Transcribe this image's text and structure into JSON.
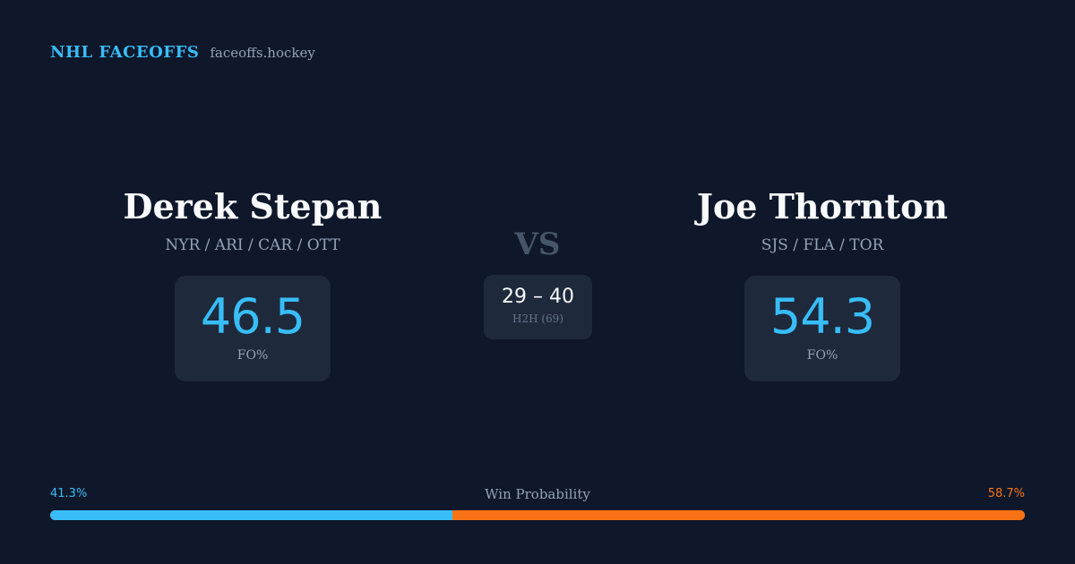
{
  "brand": {
    "name": "NHL FACEOFFS",
    "domain": "faceoffs.hockey"
  },
  "players": [
    {
      "name": "Derek Stepan",
      "teams": "NYR / ARI / CAR / OTT",
      "stat_value": "46.5",
      "stat_label": "FO%"
    },
    {
      "name": "Joe Thornton",
      "teams": "SJS / FLA / TOR",
      "stat_value": "54.3",
      "stat_label": "FO%"
    }
  ],
  "vs_label": "VS",
  "head_to_head": {
    "score": "29 – 40",
    "label": "H2H (69)"
  },
  "win_probability": {
    "title": "Win Probability",
    "left_label": "41.3%",
    "right_label": "58.7%",
    "left_fraction": 0.413,
    "right_fraction": 0.587
  },
  "colors": {
    "background": "#0f172a",
    "card": "#1e293b",
    "accent_blue": "#38bdf8",
    "accent_orange": "#f97316",
    "muted_text": "#94a3b8"
  }
}
